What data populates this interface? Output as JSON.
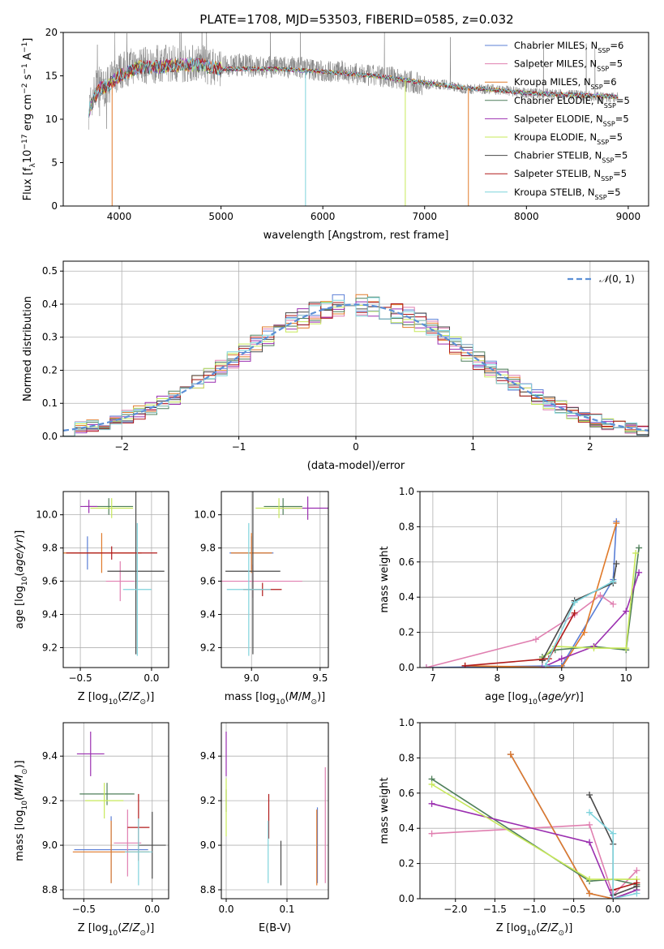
{
  "title": "PLATE=1708, MJD=53503, FIBERID=0585, z=0.032",
  "colors": {
    "Chabrier MILES": "#5b7fd6",
    "Salpeter MILES": "#e07fb0",
    "Kroupa MILES": "#e07a2a",
    "Chabrier ELODIE": "#4f7f5a",
    "Salpeter ELODIE": "#9b2fb0",
    "Kroupa ELODIE": "#c7e85a",
    "Chabrier STELIB": "#4a4a4a",
    "Salpeter STELIB": "#b01a1a",
    "Kroupa STELIB": "#7fd3dc"
  },
  "chart_data": [
    {
      "id": "spectrum",
      "type": "line",
      "title": "PLATE=1708, MJD=53503, FIBERID=0585, z=0.032",
      "xlabel": "wavelength [Angstrom, rest frame]",
      "ylabel": "Flux [f_λ10^-17 erg cm^-2 s^-1 A^-1]",
      "xlim": [
        3450,
        9200
      ],
      "ylim": [
        0,
        20
      ],
      "xticks": [
        4000,
        5000,
        6000,
        7000,
        8000,
        9000
      ],
      "yticks": [
        0,
        5,
        10,
        15,
        20
      ],
      "grid": false,
      "legend_position": "top-right",
      "legend": [
        {
          "name": "Chabrier MILES",
          "nssp": "6"
        },
        {
          "name": "Salpeter MILES",
          "nssp": "5"
        },
        {
          "name": "Kroupa MILES",
          "nssp": "6"
        },
        {
          "name": "Chabrier ELODIE",
          "nssp": "5"
        },
        {
          "name": "Salpeter ELODIE",
          "nssp": "5"
        },
        {
          "name": "Kroupa ELODIE",
          "nssp": "5"
        },
        {
          "name": "Chabrier STELIB",
          "nssp": "5"
        },
        {
          "name": "Salpeter STELIB",
          "nssp": "5"
        },
        {
          "name": "Kroupa STELIB",
          "nssp": "5"
        }
      ],
      "data_series": {
        "name": "data",
        "color": "#808080",
        "x": [
          3700,
          3750,
          3800,
          3850,
          3900,
          3950,
          4000,
          4100,
          4200,
          4300,
          4400,
          4500,
          4600,
          4700,
          4800,
          4900,
          5000,
          5200,
          5400,
          5600,
          5800,
          6000,
          6200,
          6400,
          6600,
          6800,
          7000,
          7200,
          7400,
          7600,
          7800,
          8000,
          8200,
          8400,
          8600,
          8800,
          8900
        ],
        "y": [
          11,
          13,
          14,
          13.5,
          14,
          15,
          15.5,
          16,
          16.5,
          16,
          16.5,
          16.5,
          16.3,
          16.5,
          16.5,
          16,
          16,
          16.3,
          16,
          16,
          16,
          15.5,
          15.5,
          15,
          15,
          14.5,
          14,
          14,
          13.5,
          13.5,
          13.3,
          13,
          13,
          12.8,
          12.7,
          12.5,
          12.5
        ]
      },
      "model_curve": {
        "x": [
          3700,
          3800,
          3900,
          4000,
          4200,
          4400,
          4600,
          4800,
          5000,
          5500,
          6000,
          6500,
          7000,
          7400,
          7600,
          8000,
          8500,
          8900
        ],
        "y": [
          11,
          13.5,
          14,
          15,
          16,
          16,
          16.3,
          16.2,
          15.8,
          15.8,
          15.5,
          15,
          14.2,
          13.6,
          13.5,
          13,
          12.8,
          12.6
        ]
      },
      "dips": [
        {
          "x": 3930,
          "y": 0,
          "series": "Kroupa MILES"
        },
        {
          "x": 5830,
          "y": 0,
          "series": "Kroupa STELIB"
        },
        {
          "x": 6810,
          "y": 0,
          "series": "Kroupa ELODIE"
        },
        {
          "x": 7430,
          "y": 0,
          "series": "Kroupa MILES"
        }
      ]
    },
    {
      "id": "residuals",
      "type": "line",
      "xlabel": "(data-model)/error",
      "ylabel": "Normed distribution",
      "xlim": [
        -2.5,
        2.5
      ],
      "ylim": [
        0,
        0.53
      ],
      "xticks": [
        -2,
        -1,
        0,
        1,
        2
      ],
      "yticks": [
        0.0,
        0.1,
        0.2,
        0.3,
        0.4,
        0.5
      ],
      "grid": true,
      "legend_position": "top-right",
      "reference": {
        "name": "N(0,1)",
        "mean": 0,
        "sigma": 1,
        "color": "#5b8fd6"
      },
      "bin_width": 0.1
    },
    {
      "id": "age-vs-Z",
      "type": "scatter",
      "xlabel": "Z [log10(Z/Z☉)]",
      "ylabel": "age [log10(age/yr)]",
      "xlim": [
        -0.62,
        0.12
      ],
      "ylim": [
        9.08,
        10.14
      ],
      "xticks": [
        -0.5,
        0.0
      ],
      "yticks": [
        9.2,
        9.4,
        9.6,
        9.8,
        10.0
      ],
      "grid": true,
      "errorbars": [
        {
          "series": "Chabrier MILES",
          "x": -0.45,
          "y": 9.77,
          "xerr": 0.12,
          "yerr": 0.1
        },
        {
          "series": "Salpeter MILES",
          "x": -0.22,
          "y": 9.6,
          "xerr": 0.1,
          "yerr": 0.12
        },
        {
          "series": "Kroupa MILES",
          "x": -0.35,
          "y": 9.77,
          "xerr": 0.28,
          "yerr": 0.12
        },
        {
          "series": "Chabrier ELODIE",
          "x": -0.3,
          "y": 10.05,
          "xerr": 0.17,
          "yerr": 0.05
        },
        {
          "series": "Salpeter ELODIE",
          "x": -0.44,
          "y": 10.05,
          "xerr": 0.06,
          "yerr": 0.04
        },
        {
          "series": "Kroupa ELODIE",
          "x": -0.28,
          "y": 10.04,
          "xerr": 0.15,
          "yerr": 0.06
        },
        {
          "series": "Chabrier STELIB",
          "x": -0.11,
          "y": 9.66,
          "xerr": 0.2,
          "yerr": 0.5
        },
        {
          "series": "Salpeter STELIB",
          "x": -0.28,
          "y": 9.77,
          "xerr": 0.32,
          "yerr": 0.04
        },
        {
          "series": "Kroupa STELIB",
          "x": -0.1,
          "y": 9.55,
          "xerr": 0.1,
          "yerr": 0.4
        }
      ]
    },
    {
      "id": "age-vs-mass",
      "type": "scatter",
      "xlabel": "mass [log10(M/M☉)]",
      "ylabel": "",
      "xlim": [
        8.78,
        9.56
      ],
      "ylim": [
        9.08,
        10.14
      ],
      "xticks": [
        9.0,
        9.5
      ],
      "yticks": [
        9.2,
        9.4,
        9.6,
        9.8,
        10.0
      ],
      "grid": true,
      "errorbars": [
        {
          "series": "Chabrier MILES",
          "x": 9.0,
          "y": 9.77,
          "xerr": 0.16,
          "yerr": 0.1
        },
        {
          "series": "Salpeter MILES",
          "x": 9.01,
          "y": 9.6,
          "xerr": 0.36,
          "yerr": 0.1
        },
        {
          "series": "Kroupa MILES",
          "x": 9.0,
          "y": 9.77,
          "xerr": 0.15,
          "yerr": 0.12
        },
        {
          "series": "Chabrier ELODIE",
          "x": 9.23,
          "y": 10.05,
          "xerr": 0.14,
          "yerr": 0.05
        },
        {
          "series": "Salpeter ELODIE",
          "x": 9.41,
          "y": 10.04,
          "xerr": 0.2,
          "yerr": 0.07
        },
        {
          "series": "Kroupa ELODIE",
          "x": 9.2,
          "y": 10.04,
          "xerr": 0.17,
          "yerr": 0.06
        },
        {
          "series": "Chabrier STELIB",
          "x": 9.01,
          "y": 9.66,
          "xerr": 0.2,
          "yerr": 0.5
        },
        {
          "series": "Salpeter STELIB",
          "x": 9.08,
          "y": 9.55,
          "xerr": 0.14,
          "yerr": 0.04
        },
        {
          "series": "Kroupa STELIB",
          "x": 8.98,
          "y": 9.55,
          "xerr": 0.16,
          "yerr": 0.4
        }
      ]
    },
    {
      "id": "weight-vs-age",
      "type": "line",
      "xlabel": "age [log10(age/yr)]",
      "ylabel": "mass weight",
      "xlim": [
        6.8,
        10.35
      ],
      "ylim": [
        0,
        1.0
      ],
      "xticks": [
        7,
        8,
        9,
        10
      ],
      "yticks": [
        0.0,
        0.2,
        0.4,
        0.6,
        0.8,
        1.0
      ],
      "grid": true,
      "series": [
        {
          "name": "Chabrier MILES",
          "x": [
            6.9,
            9.0,
            9.8,
            9.85
          ],
          "y": [
            0.0,
            0.01,
            0.5,
            0.83
          ]
        },
        {
          "name": "Salpeter MILES",
          "x": [
            6.9,
            8.6,
            9.2,
            9.6,
            9.8
          ],
          "y": [
            0.0,
            0.16,
            0.3,
            0.41,
            0.36
          ]
        },
        {
          "name": "Kroupa MILES",
          "x": [
            7.5,
            9.0,
            9.35,
            9.85
          ],
          "y": [
            0.01,
            0.0,
            0.2,
            0.82
          ]
        },
        {
          "name": "Chabrier ELODIE",
          "x": [
            8.7,
            8.9,
            9.5,
            10.0,
            10.2
          ],
          "y": [
            0.06,
            0.1,
            0.12,
            0.1,
            0.68
          ]
        },
        {
          "name": "Salpeter ELODIE",
          "x": [
            8.7,
            9.0,
            9.5,
            10.0,
            10.2
          ],
          "y": [
            0.0,
            0.05,
            0.12,
            0.32,
            0.54
          ]
        },
        {
          "name": "Kroupa ELODIE",
          "x": [
            8.7,
            8.9,
            9.5,
            10.0,
            10.15
          ],
          "y": [
            0.05,
            0.12,
            0.11,
            0.11,
            0.65
          ]
        },
        {
          "name": "Chabrier STELIB",
          "x": [
            8.7,
            9.2,
            9.8,
            9.85
          ],
          "y": [
            0.04,
            0.38,
            0.48,
            0.59
          ]
        },
        {
          "name": "Salpeter STELIB",
          "x": [
            7.5,
            8.8,
            9.2
          ],
          "y": [
            0.01,
            0.05,
            0.31
          ]
        },
        {
          "name": "Kroupa STELIB",
          "x": [
            8.75,
            9.2,
            9.8
          ],
          "y": [
            0.01,
            0.37,
            0.49
          ]
        }
      ]
    },
    {
      "id": "mass-vs-Z",
      "type": "scatter",
      "xlabel": "Z [log10(Z/Z☉)]",
      "ylabel": "mass [log10(M/M☉)]",
      "xlim": [
        -0.65,
        0.12
      ],
      "ylim": [
        8.76,
        9.55
      ],
      "xticks": [
        -0.5,
        0.0
      ],
      "yticks": [
        8.8,
        9.0,
        9.2,
        9.4
      ],
      "grid": true,
      "errorbars": [
        {
          "series": "Chabrier MILES",
          "x": -0.3,
          "y": 8.98,
          "xerr": 0.27,
          "yerr": 0.15
        },
        {
          "series": "Salpeter MILES",
          "x": -0.18,
          "y": 9.01,
          "xerr": 0.1,
          "yerr": 0.15
        },
        {
          "series": "Kroupa MILES",
          "x": -0.3,
          "y": 8.97,
          "xerr": 0.28,
          "yerr": 0.14
        },
        {
          "series": "Chabrier ELODIE",
          "x": -0.33,
          "y": 9.23,
          "xerr": 0.2,
          "yerr": 0.05
        },
        {
          "series": "Salpeter ELODIE",
          "x": -0.45,
          "y": 9.41,
          "xerr": 0.1,
          "yerr": 0.1
        },
        {
          "series": "Kroupa ELODIE",
          "x": -0.35,
          "y": 9.2,
          "xerr": 0.14,
          "yerr": 0.08
        },
        {
          "series": "Chabrier STELIB",
          "x": 0.0,
          "y": 9.0,
          "xerr": 0.1,
          "yerr": 0.15
        },
        {
          "series": "Salpeter STELIB",
          "x": -0.1,
          "y": 9.08,
          "xerr": 0.08,
          "yerr": 0.15
        },
        {
          "series": "Kroupa STELIB",
          "x": -0.1,
          "y": 8.97,
          "xerr": 0.1,
          "yerr": 0.15
        }
      ]
    },
    {
      "id": "mass-vs-ebv",
      "type": "scatter",
      "xlabel": "E(B-V)",
      "ylabel": "",
      "xlim": [
        -0.008,
        0.168
      ],
      "ylim": [
        8.76,
        9.55
      ],
      "xticks": [
        0.0,
        0.1
      ],
      "yticks": [
        8.8,
        9.0,
        9.2,
        9.4
      ],
      "grid": true,
      "errorbars": [
        {
          "series": "Chabrier MILES",
          "x": 0.15,
          "y": 9.0,
          "xerr": 0,
          "yerr": 0.17
        },
        {
          "series": "Salpeter MILES",
          "x": 0.163,
          "y": 9.09,
          "xerr": 0,
          "yerr": 0.26
        },
        {
          "series": "Kroupa MILES",
          "x": 0.149,
          "y": 8.99,
          "xerr": 0,
          "yerr": 0.17
        },
        {
          "series": "Chabrier ELODIE",
          "x": 0.0,
          "y": 9.2,
          "xerr": 0,
          "yerr": 0.05
        },
        {
          "series": "Salpeter ELODIE",
          "x": 0.0,
          "y": 9.41,
          "xerr": 0,
          "yerr": 0.1
        },
        {
          "series": "Kroupa ELODIE",
          "x": 0.0,
          "y": 9.17,
          "xerr": 0,
          "yerr": 0.13
        },
        {
          "series": "Chabrier STELIB",
          "x": 0.09,
          "y": 8.92,
          "xerr": 0,
          "yerr": 0.1
        },
        {
          "series": "Salpeter STELIB",
          "x": 0.07,
          "y": 9.13,
          "xerr": 0,
          "yerr": 0.1
        },
        {
          "series": "Kroupa STELIB",
          "x": 0.069,
          "y": 8.97,
          "xerr": 0,
          "yerr": 0.14
        }
      ]
    },
    {
      "id": "weight-vs-Z",
      "type": "line",
      "xlabel": "Z [log10(Z/Z☉)]",
      "ylabel": "mass weight",
      "xlim": [
        -2.45,
        0.45
      ],
      "ylim": [
        0,
        1.0
      ],
      "xticks": [
        -2.0,
        -1.5,
        -1.0,
        -0.5,
        0.0
      ],
      "yticks": [
        0.0,
        0.2,
        0.4,
        0.6,
        0.8,
        1.0
      ],
      "grid": true,
      "series": [
        {
          "name": "Chabrier MILES",
          "x": [
            -1.3,
            -0.3,
            0.0,
            0.3
          ],
          "y": [
            0.82,
            0.03,
            0.0,
            0.05
          ]
        },
        {
          "name": "Salpeter MILES",
          "x": [
            -2.3,
            -0.3,
            0.0,
            0.3
          ],
          "y": [
            0.37,
            0.42,
            0.02,
            0.16
          ]
        },
        {
          "name": "Kroupa MILES",
          "x": [
            -1.3,
            -0.3,
            0.0,
            0.3
          ],
          "y": [
            0.82,
            0.03,
            0.0,
            0.05
          ]
        },
        {
          "name": "Chabrier ELODIE",
          "x": [
            -2.3,
            -0.3,
            0.0,
            0.3
          ],
          "y": [
            0.68,
            0.1,
            0.11,
            0.08
          ]
        },
        {
          "name": "Salpeter ELODIE",
          "x": [
            -2.3,
            -0.3,
            0.0,
            0.3
          ],
          "y": [
            0.54,
            0.32,
            0.0,
            0.05
          ]
        },
        {
          "name": "Kroupa ELODIE",
          "x": [
            -2.3,
            -0.3,
            0.0,
            0.3
          ],
          "y": [
            0.65,
            0.11,
            0.11,
            0.11
          ]
        },
        {
          "name": "Chabrier STELIB",
          "x": [
            -0.3,
            0.0,
            0.0,
            0.3
          ],
          "y": [
            0.59,
            0.31,
            0.02,
            0.07
          ]
        },
        {
          "name": "Salpeter STELIB",
          "x": [
            0.0,
            0.3
          ],
          "y": [
            0.05,
            0.09
          ]
        },
        {
          "name": "Kroupa STELIB",
          "x": [
            -0.3,
            0.0,
            0.0,
            0.3
          ],
          "y": [
            0.49,
            0.37,
            0.0,
            0.03
          ]
        }
      ]
    }
  ]
}
